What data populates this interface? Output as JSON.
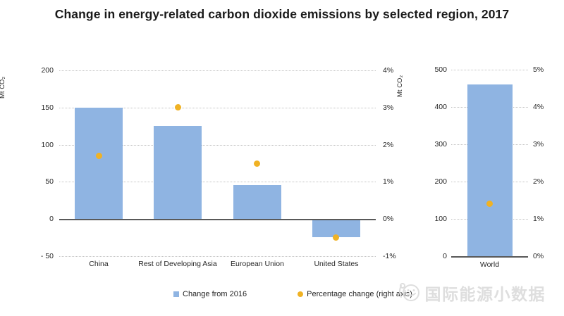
{
  "page": {
    "title": "Change in energy-related carbon dioxide emissions by selected region, 2017"
  },
  "legend": {
    "items": [
      {
        "marker": "blue-square",
        "label": "Change from 2016"
      },
      {
        "marker": "gold-dot",
        "label": "Percentage change (right axis)"
      }
    ]
  },
  "watermark": {
    "icon": "wechat-face-logo",
    "text": "国际能源小数据"
  },
  "colors": {
    "bar": "#8FB4E2",
    "dot": "#F0B224",
    "gridline": "#C2C2C2",
    "zero_axis": "#595959",
    "title_text": "#1A1A1A",
    "watermark": "#DEDEDE"
  },
  "chart_data": [
    {
      "type": "bar",
      "name": "selected-regions",
      "title": "",
      "grid": "horizontal-dotted",
      "categories": [
        "China",
        "Rest of Developing Asia",
        "European Union",
        "United States"
      ],
      "series": [
        {
          "name": "Change from 2016",
          "type": "bar",
          "axis": "left",
          "unit": "Mt CO₂",
          "values": [
            150,
            125,
            46,
            -25
          ]
        },
        {
          "name": "Percentage change (right axis)",
          "type": "scatter",
          "axis": "right",
          "unit": "%",
          "values": [
            1.7,
            3.0,
            1.5,
            -0.5
          ]
        }
      ],
      "left_axis": {
        "title": "Mt CO₂",
        "range": [
          -50,
          200
        ],
        "tick_values": [
          200,
          150,
          100,
          50,
          0,
          -50
        ],
        "tick_labels": [
          "200",
          "150",
          "100",
          "50",
          "0",
          "- 50"
        ]
      },
      "right_axis": {
        "range": [
          -1,
          4
        ],
        "tick_values": [
          4,
          3,
          2,
          1,
          0,
          -1
        ],
        "tick_labels": [
          "4%",
          "3%",
          "2%",
          "1%",
          "0%",
          "-1%"
        ]
      }
    },
    {
      "type": "bar",
      "name": "world",
      "title": "",
      "grid": "horizontal-dotted",
      "categories": [
        "World"
      ],
      "series": [
        {
          "name": "Change from 2016",
          "type": "bar",
          "axis": "left",
          "unit": "Mt CO₂",
          "values": [
            460
          ]
        },
        {
          "name": "Percentage change (right axis)",
          "type": "scatter",
          "axis": "right",
          "unit": "%",
          "values": [
            1.4
          ]
        }
      ],
      "left_axis": {
        "title": "Mt CO₂",
        "range": [
          0,
          500
        ],
        "tick_values": [
          500,
          400,
          300,
          200,
          100,
          0
        ],
        "tick_labels": [
          "500",
          "400",
          "300",
          "200",
          "100",
          "0"
        ]
      },
      "right_axis": {
        "range": [
          0,
          5
        ],
        "tick_values": [
          5,
          4,
          3,
          2,
          1,
          0
        ],
        "tick_labels": [
          "5%",
          "4%",
          "3%",
          "2%",
          "1%",
          "0%"
        ]
      }
    }
  ]
}
